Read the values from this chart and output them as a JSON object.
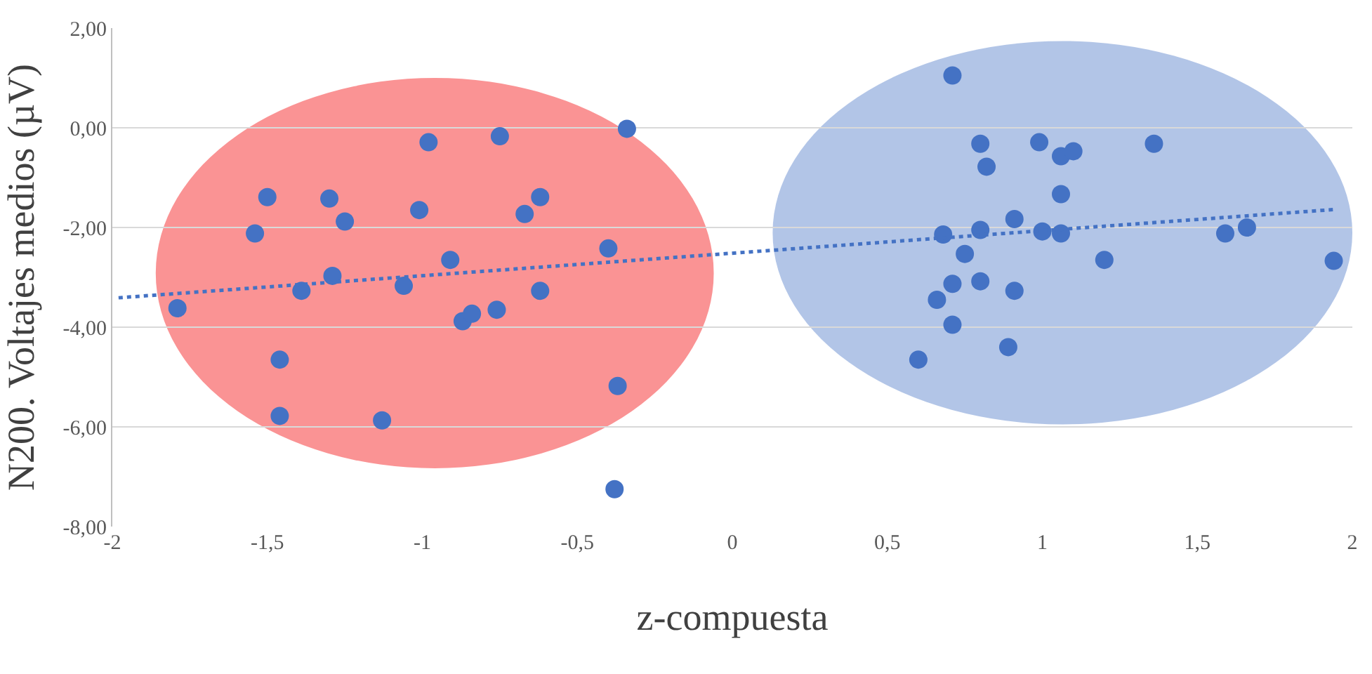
{
  "chart_data": {
    "type": "scatter",
    "xlabel": "z-compuesta",
    "ylabel": "N200. Voltajes medios (µV)",
    "xlim": [
      -2,
      2
    ],
    "ylim": [
      -8,
      2
    ],
    "xticks": [
      -2,
      {
        "value": -1.5,
        "label": "-1,5"
      },
      -1,
      {
        "value": -0.5,
        "label": "-0,5"
      },
      0,
      {
        "value": 0.5,
        "label": "0,5"
      },
      1,
      {
        "value": 1.5,
        "label": "1,5"
      },
      2
    ],
    "yticks": [
      {
        "value": -8,
        "label": "-8,00"
      },
      {
        "value": -6,
        "label": "-6,00"
      },
      {
        "value": -4,
        "label": "-4,00"
      },
      {
        "value": -2,
        "label": "-2,00"
      },
      {
        "value": 0,
        "label": "0,00"
      },
      {
        "value": 2,
        "label": "2,00"
      }
    ],
    "grid": "y",
    "marker": "circle",
    "series": [
      {
        "color": "#4472c4",
        "x": [
          -1.79,
          -1.54,
          -1.5,
          -1.46,
          -1.46,
          -1.39,
          -1.3,
          -1.29,
          -1.25,
          -1.13,
          -1.06,
          -1.01,
          -0.98,
          -0.91,
          -0.87,
          -0.84,
          -0.76,
          -0.75,
          -0.67,
          -0.62,
          -0.62,
          -0.4,
          -0.37,
          -0.34,
          -0.38,
          0.71,
          0.8,
          0.82,
          0.99,
          1.06,
          1.1,
          1.36,
          1.06,
          0.91,
          0.68,
          0.8,
          1.0,
          1.06,
          0.75,
          1.2,
          1.59,
          1.66,
          1.94,
          0.71,
          0.8,
          0.91,
          0.66,
          0.71,
          0.89,
          0.6
        ],
        "values": [
          -3.62,
          -2.12,
          -1.39,
          -4.65,
          -5.78,
          -3.27,
          -1.42,
          -2.97,
          -1.88,
          -5.87,
          -3.17,
          -1.65,
          -0.29,
          -2.65,
          -3.88,
          -3.73,
          -3.65,
          -0.17,
          -1.73,
          -1.39,
          -3.27,
          -2.42,
          -5.18,
          -0.02,
          -7.25,
          1.05,
          -0.32,
          -0.78,
          -0.29,
          -0.57,
          -0.47,
          -0.32,
          -1.33,
          -1.83,
          -2.14,
          -2.05,
          -2.08,
          -2.12,
          -2.53,
          -2.65,
          -2.12,
          -2.0,
          -2.67,
          -3.13,
          -3.08,
          -3.27,
          -3.45,
          -3.95,
          -4.4,
          -4.65
        ]
      },
      {
        "type": "line",
        "color": "#4472c4",
        "line_style": "dotted",
        "marker": "none",
        "x": [
          -1.98,
          1.94
        ],
        "values": [
          -3.41,
          -1.64
        ]
      }
    ]
  }
}
